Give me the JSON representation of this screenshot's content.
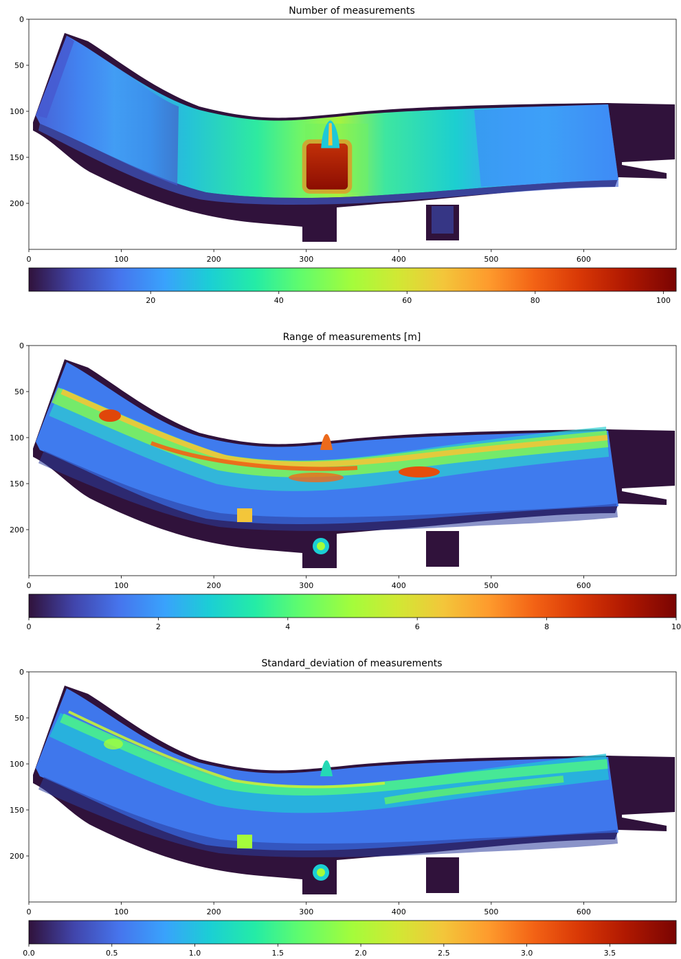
{
  "chart_data": [
    {
      "type": "heatmap",
      "title": "Number of measurements",
      "x_ticks": [
        0,
        100,
        200,
        300,
        400,
        500,
        600
      ],
      "y_ticks": [
        0,
        50,
        100,
        150,
        200
      ],
      "xlim": [
        0,
        700
      ],
      "ylim": [
        250,
        0
      ],
      "colorbar": {
        "colormap": "turbo",
        "orientation": "horizontal",
        "range": [
          1,
          102
        ],
        "ticks": [
          20,
          40,
          60,
          80,
          100
        ]
      },
      "peak_region": {
        "x": [
          300,
          345
        ],
        "y": [
          135,
          185
        ],
        "value": 100
      },
      "spike": {
        "x": [
          316,
          336
        ],
        "y": [
          110,
          140
        ]
      }
    },
    {
      "type": "heatmap",
      "title": "Range of measurements [m]",
      "x_ticks": [
        0,
        100,
        200,
        300,
        400,
        500,
        600
      ],
      "y_ticks": [
        0,
        50,
        100,
        150,
        200
      ],
      "xlim": [
        0,
        700
      ],
      "ylim": [
        250,
        0
      ],
      "colorbar": {
        "colormap": "turbo",
        "orientation": "horizontal",
        "range": [
          0,
          10
        ],
        "ticks": [
          0,
          2,
          4,
          6,
          8,
          10
        ]
      }
    },
    {
      "type": "heatmap",
      "title": "Standard_deviation of measurements",
      "x_ticks": [
        0,
        100,
        200,
        300,
        400,
        500,
        600
      ],
      "y_ticks": [
        0,
        50,
        100,
        150,
        200
      ],
      "xlim": [
        0,
        700
      ],
      "ylim": [
        250,
        0
      ],
      "colorbar": {
        "colormap": "turbo",
        "orientation": "horizontal",
        "range": [
          0,
          3.9
        ],
        "ticks": [
          0.0,
          0.5,
          1.0,
          1.5,
          2.0,
          2.5,
          3.0,
          3.5
        ]
      }
    }
  ]
}
